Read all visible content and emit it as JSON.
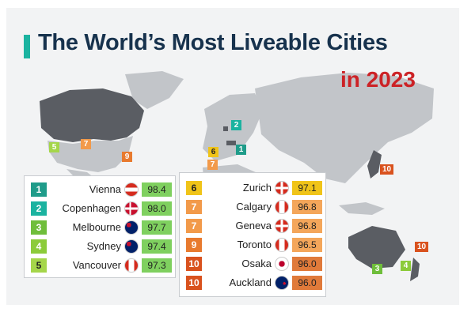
{
  "title": "The World’s Most Liveable Cities",
  "subtitle": "in 2023",
  "colors": {
    "title": "#17324d",
    "subtitle": "#cc2226",
    "accent_bar": "#1bb3a0",
    "rank_colors": {
      "1": "#1f9c8a",
      "2": "#1bb3a0",
      "3": "#6fbe3b",
      "4": "#8ccb3a",
      "5": "#a5d64a",
      "6": "#f0c419",
      "7": "#f29a4a",
      "9": "#e87a2e",
      "10": "#d9521e"
    },
    "score_bg_left": "#7fd05f",
    "score_bg_right": "#f4a65a"
  },
  "map_markers": [
    "5",
    "7",
    "9",
    "2",
    "6",
    "1",
    "7",
    "10",
    "10",
    "3",
    "4"
  ],
  "left_table": [
    {
      "rank": "1",
      "city": "Vienna",
      "flag": "austria-flag-icon",
      "score": "98.4"
    },
    {
      "rank": "2",
      "city": "Copenhagen",
      "flag": "denmark-flag-icon",
      "score": "98.0"
    },
    {
      "rank": "3",
      "city": "Melbourne",
      "flag": "australia-flag-icon",
      "score": "97.7"
    },
    {
      "rank": "4",
      "city": "Sydney",
      "flag": "australia-flag-icon",
      "score": "97.4"
    },
    {
      "rank": "5",
      "city": "Vancouver",
      "flag": "canada-flag-icon",
      "score": "97.3"
    }
  ],
  "right_table": [
    {
      "rank": "6",
      "city": "Zurich",
      "flag": "switzerland-flag-icon",
      "score": "97.1"
    },
    {
      "rank": "7",
      "city": "Calgary",
      "flag": "canada-flag-icon",
      "score": "96.8"
    },
    {
      "rank": "7",
      "city": "Geneva",
      "flag": "switzerland-flag-icon",
      "score": "96.8"
    },
    {
      "rank": "9",
      "city": "Toronto",
      "flag": "canada-flag-icon",
      "score": "96.5"
    },
    {
      "rank": "10",
      "city": "Osaka",
      "flag": "japan-flag-icon",
      "score": "96.0"
    },
    {
      "rank": "10",
      "city": "Auckland",
      "flag": "new-zealand-flag-icon",
      "score": "96.0"
    }
  ]
}
